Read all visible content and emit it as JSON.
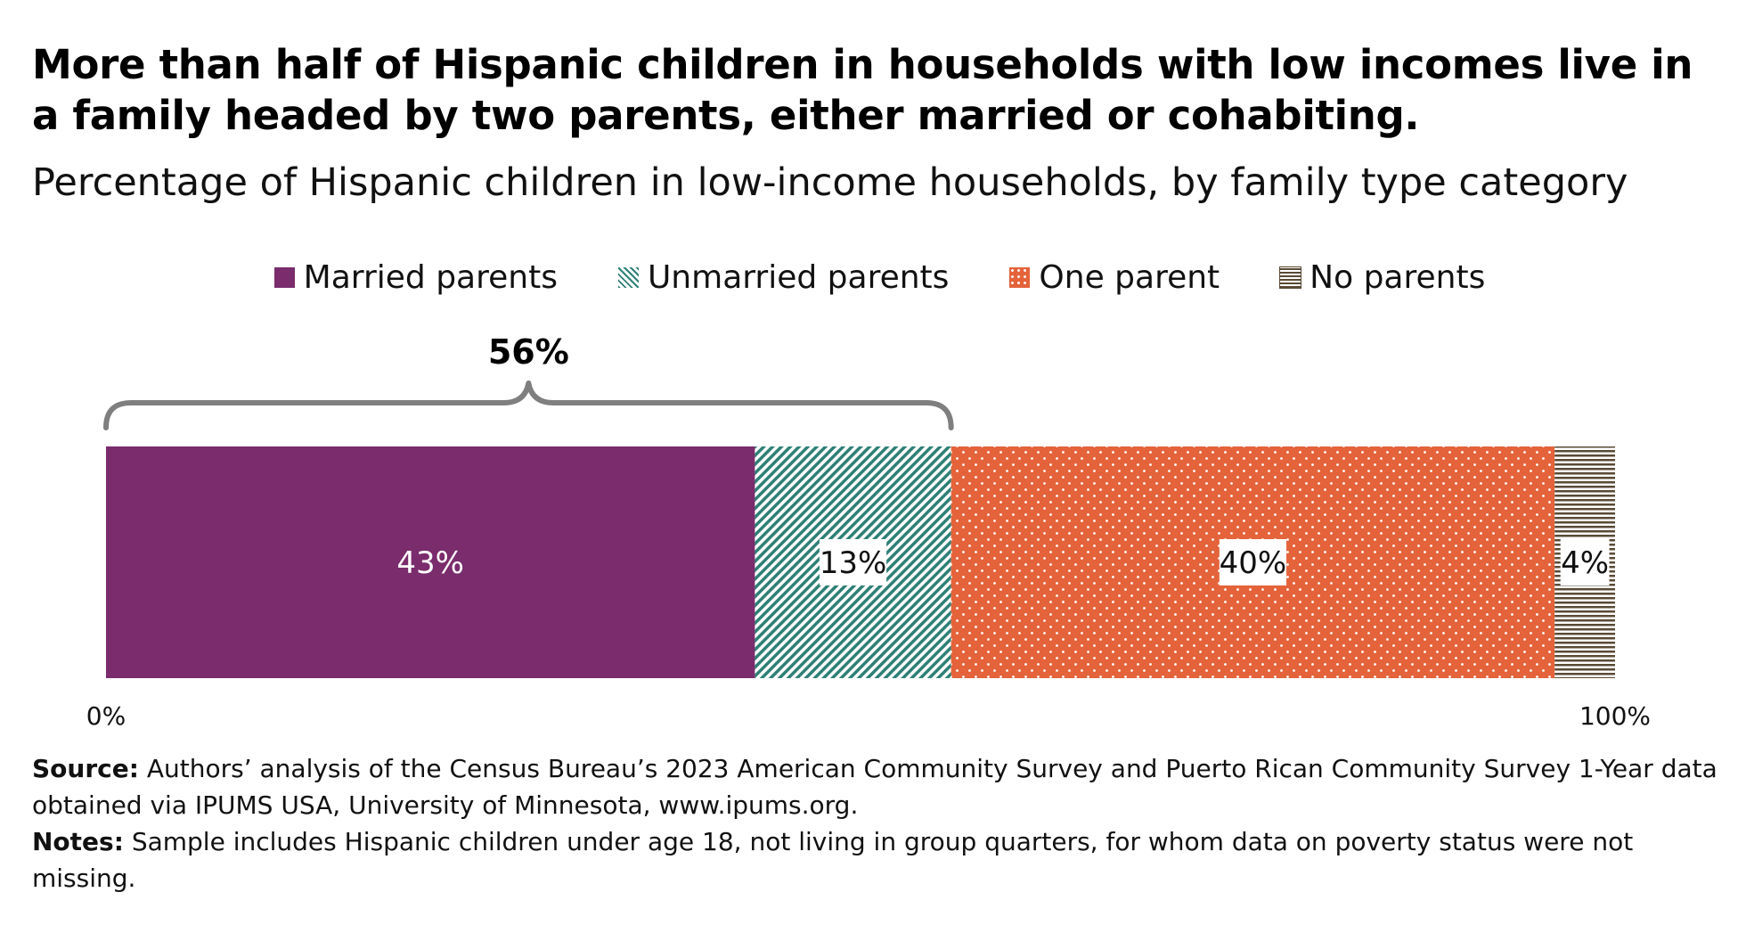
{
  "title": "More than half of Hispanic children in households with low incomes live in a family headed by two parents, either married or cohabiting.",
  "subtitle": "Percentage of Hispanic children in low-income households, by family type category",
  "legend": [
    {
      "label": "Married parents",
      "icon": "solid-swatch"
    },
    {
      "label": "Unmarried parents",
      "icon": "diagonal-hatch-swatch"
    },
    {
      "label": "One parent",
      "icon": "dotted-swatch"
    },
    {
      "label": "No parents",
      "icon": "horizontal-stripe-swatch"
    }
  ],
  "colors": {
    "married": "#7a2c6d",
    "unmarried": "#2e8076",
    "one_parent": "#e4633a",
    "no_parents": "#5a4a35",
    "bracket": "#7f7f7f"
  },
  "chart_data": {
    "type": "bar",
    "orientation": "horizontal-stacked-100",
    "categories": [
      "Married parents",
      "Unmarried parents",
      "One parent",
      "No parents"
    ],
    "values": [
      43,
      13,
      40,
      4
    ],
    "value_labels": [
      "43%",
      "13%",
      "40%",
      "4%"
    ],
    "xlim": [
      0,
      100
    ],
    "x_tick_labels": [
      "0%",
      "100%"
    ],
    "annotation": {
      "label": "56%",
      "spans": [
        "Married parents",
        "Unmarried parents"
      ],
      "value": 56
    },
    "legend_position": "top"
  },
  "source": {
    "label": "Source:",
    "text": "Authors’ analysis of the Census Bureau’s 2023 American Community Survey and Puerto Rican Community Survey 1-Year data obtained via IPUMS USA, University of Minnesota, www.ipums.org."
  },
  "notes": {
    "label": "Notes:",
    "text": "Sample includes Hispanic children under age 18, not living in group quarters, for whom data on poverty status were not missing."
  }
}
